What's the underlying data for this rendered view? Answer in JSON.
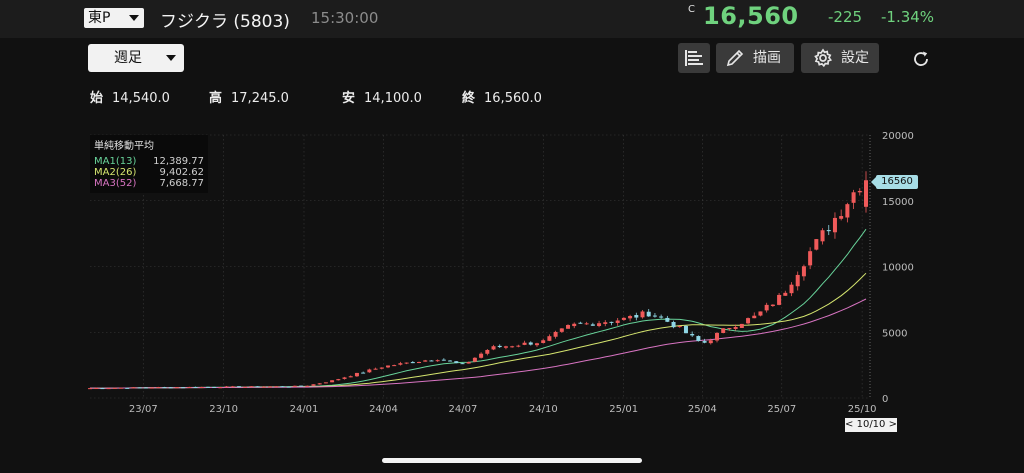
{
  "header": {
    "market": "東P",
    "name": "フジクラ (5803)",
    "time": "15:30:00",
    "price_flag": "C",
    "price": "16,560",
    "change": "-225",
    "change_pct": "-1.34%"
  },
  "toolbar": {
    "period": "週足",
    "draw_label": "描画",
    "settings_label": "設定",
    "icons": [
      "order-book-icon",
      "pen-icon",
      "gear-icon",
      "refresh-icon"
    ]
  },
  "ohlc": {
    "open_label": "始",
    "open": "14,540.0",
    "high_label": "高",
    "high": "17,245.0",
    "low_label": "安",
    "low": "14,100.0",
    "close_label": "終",
    "close": "16,560.0"
  },
  "legend": {
    "title": "単純移動平均",
    "rows": [
      {
        "name": "MA1(13)",
        "value": "12,389.77",
        "color": "#68d39a"
      },
      {
        "name": "MA2(26)",
        "value": "9,402.62",
        "color": "#d5e56f"
      },
      {
        "name": "MA3(52)",
        "value": "7,668.77",
        "color": "#d874c2"
      }
    ]
  },
  "last_price_label": "16560",
  "nav_label": "< 10/10 >",
  "colors": {
    "up": "#f05a5a",
    "down": "#8fd6e4",
    "grid": "#3a3a3a",
    "text": "#bdbdbd",
    "accent": "#6fd27e"
  },
  "chart_data": {
    "type": "candlestick",
    "x_axis": {
      "ticks": [
        "23/07",
        "23/10",
        "24/01",
        "24/04",
        "24/07",
        "24/10",
        "25/01",
        "25/04",
        "25/07",
        "25/10"
      ],
      "start": "2023-05",
      "end": "2025-10-10"
    },
    "y_axis": {
      "ticks": [
        0,
        5000,
        10000,
        15000,
        20000
      ],
      "ylim": [
        0,
        20000
      ],
      "position": "right"
    },
    "price_points": [
      [
        "2023-05",
        750
      ],
      [
        "2023-07",
        800
      ],
      [
        "2023-10",
        850
      ],
      [
        "2024-01",
        900
      ],
      [
        "2024-02",
        1300
      ],
      [
        "2024-04",
        2400
      ],
      [
        "2024-06",
        3000
      ],
      [
        "2024-07",
        2500
      ],
      [
        "2024-08",
        3800
      ],
      [
        "2024-10",
        4300
      ],
      [
        "2024-11",
        5500
      ],
      [
        "2025-01",
        6000
      ],
      [
        "2025-02",
        6500
      ],
      [
        "2025-03",
        5500
      ],
      [
        "2025-04",
        4100
      ],
      [
        "2025-05",
        5400
      ],
      [
        "2025-06",
        6200
      ],
      [
        "2025-07",
        7800
      ],
      [
        "2025-08",
        11000
      ],
      [
        "2025-09",
        13800
      ],
      [
        "2025-10",
        16560
      ]
    ],
    "moving_averages": [
      {
        "name": "MA1(13)",
        "last": 12389.77
      },
      {
        "name": "MA2(26)",
        "last": 9402.62
      },
      {
        "name": "MA3(52)",
        "last": 7668.77
      }
    ],
    "last": {
      "open": 14540,
      "high": 17245,
      "low": 14100,
      "close": 16560
    }
  }
}
